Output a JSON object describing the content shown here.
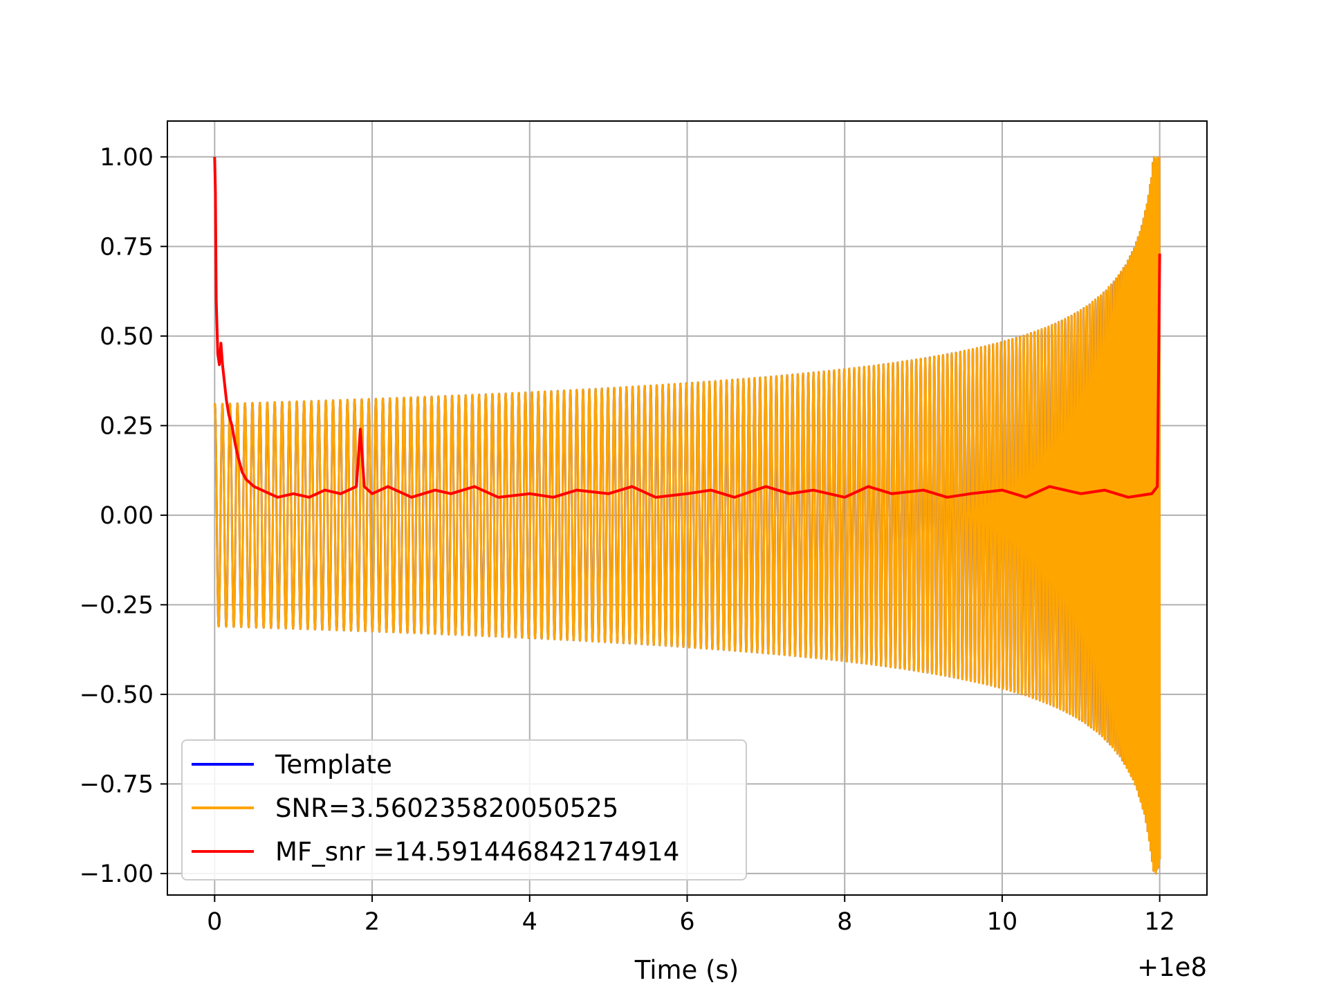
{
  "chart_data": {
    "type": "line",
    "title": "",
    "xlabel": "Time (s)",
    "ylabel": "",
    "x_offset_label": "+1e8",
    "xlim": [
      -0.6,
      12.6
    ],
    "ylim": [
      -1.06,
      1.1
    ],
    "grid": true,
    "legend_position": "lower-left",
    "x_ticks": [
      {
        "value": 0,
        "label": "0"
      },
      {
        "value": 2,
        "label": "2"
      },
      {
        "value": 4,
        "label": "4"
      },
      {
        "value": 6,
        "label": "6"
      },
      {
        "value": 8,
        "label": "8"
      },
      {
        "value": 10,
        "label": "10"
      },
      {
        "value": 12,
        "label": "12"
      }
    ],
    "y_ticks": [
      {
        "value": 1.0,
        "label": "1.00"
      },
      {
        "value": 0.75,
        "label": "0.75"
      },
      {
        "value": 0.5,
        "label": "0.50"
      },
      {
        "value": 0.25,
        "label": "0.25"
      },
      {
        "value": 0.0,
        "label": "0.00"
      },
      {
        "value": -0.25,
        "label": "−0.25"
      },
      {
        "value": -0.5,
        "label": "−0.50"
      },
      {
        "value": -0.75,
        "label": "−0.75"
      },
      {
        "value": -1.0,
        "label": "−1.00"
      }
    ],
    "series": [
      {
        "name": "Template",
        "color": "#0000ff",
        "kind": "chirp",
        "t_start": 0.0,
        "t_end": 12.0,
        "amplitude_start": 0.31,
        "amplitude_peak": 1.0,
        "end_value": -0.96
      },
      {
        "name": "SNR=3.560235820050525",
        "color": "#ffa500",
        "kind": "chirp",
        "t_start": 0.0,
        "t_end": 12.0,
        "amplitude_start": 0.31,
        "amplitude_peak": 1.0,
        "end_value": -0.96
      },
      {
        "name": "MF_snr =14.591446842174914",
        "color": "#ff0000",
        "kind": "points",
        "x": [
          0.0,
          0.01,
          0.02,
          0.04,
          0.06,
          0.08,
          0.1,
          0.12,
          0.15,
          0.18,
          0.22,
          0.26,
          0.3,
          0.35,
          0.4,
          0.5,
          0.6,
          0.8,
          1.0,
          1.2,
          1.4,
          1.6,
          1.8,
          1.85,
          1.9,
          2.0,
          2.2,
          2.5,
          2.8,
          3.0,
          3.3,
          3.6,
          4.0,
          4.3,
          4.6,
          5.0,
          5.3,
          5.6,
          6.0,
          6.3,
          6.6,
          7.0,
          7.3,
          7.6,
          8.0,
          8.3,
          8.6,
          9.0,
          9.3,
          9.6,
          10.0,
          10.3,
          10.6,
          11.0,
          11.3,
          11.6,
          11.9,
          11.97,
          12.0
        ],
        "y": [
          1.0,
          0.9,
          0.6,
          0.45,
          0.42,
          0.48,
          0.42,
          0.38,
          0.32,
          0.28,
          0.25,
          0.2,
          0.16,
          0.12,
          0.1,
          0.08,
          0.07,
          0.05,
          0.06,
          0.05,
          0.07,
          0.06,
          0.08,
          0.24,
          0.08,
          0.06,
          0.08,
          0.05,
          0.07,
          0.06,
          0.08,
          0.05,
          0.06,
          0.05,
          0.07,
          0.06,
          0.08,
          0.05,
          0.06,
          0.07,
          0.05,
          0.08,
          0.06,
          0.07,
          0.05,
          0.08,
          0.06,
          0.07,
          0.05,
          0.06,
          0.07,
          0.05,
          0.08,
          0.06,
          0.07,
          0.05,
          0.06,
          0.08,
          0.73
        ]
      }
    ]
  }
}
